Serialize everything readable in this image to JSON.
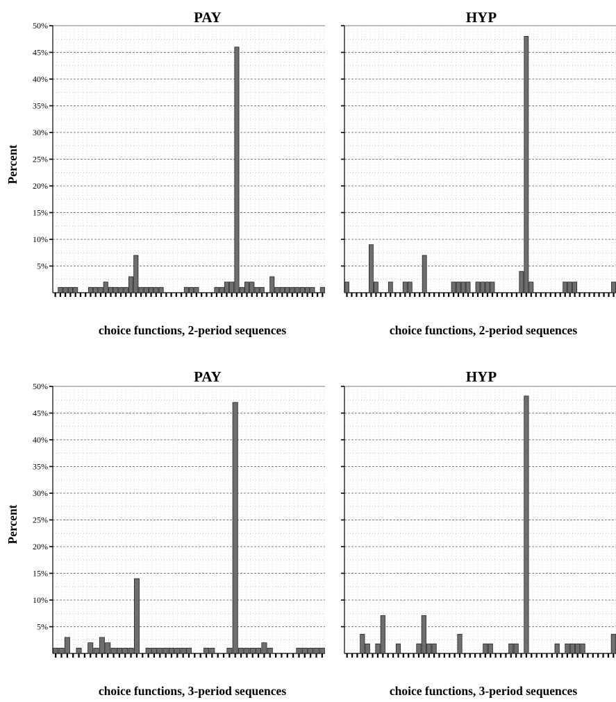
{
  "y_axis_label": "Percent",
  "panel_titles": [
    "PAY",
    "HYP",
    "PAY",
    "HYP"
  ],
  "x_axis_labels": [
    "choice functions, 2-period sequences",
    "choice functions, 2-period sequences",
    "choice functions, 3-period sequences",
    "choice functions, 3-period sequences"
  ],
  "colors": {
    "bar_fill": "#6e6e6e",
    "bar_stroke": "#222222",
    "major_grid": "#808080",
    "minor_grid": "#b0b0b0"
  },
  "chart_data": [
    {
      "type": "bar",
      "title": "PAY",
      "xlabel": "choice functions, 2-period sequences",
      "ylabel": "Percent",
      "ylim": [
        0,
        50
      ],
      "ytick_labels": [
        "5%",
        "10%",
        "15%",
        "20%",
        "25%",
        "30%",
        "35%",
        "40%",
        "45%",
        "50%"
      ],
      "values": [
        0,
        1,
        1,
        1,
        1,
        0,
        0,
        1,
        1,
        1,
        2,
        1,
        1,
        1,
        1,
        3,
        7,
        1,
        1,
        1,
        1,
        1,
        0,
        0,
        0,
        0,
        1,
        1,
        1,
        0,
        0,
        0,
        1,
        1,
        2,
        2,
        46,
        1,
        2,
        2,
        1,
        1,
        0,
        3,
        1,
        1,
        1,
        1,
        1,
        1,
        1,
        1,
        0,
        1
      ],
      "grid": true
    },
    {
      "type": "bar",
      "title": "HYP",
      "xlabel": "choice functions, 2-period sequences",
      "ylabel": "",
      "ylim": [
        0,
        50
      ],
      "values": [
        2,
        0,
        0,
        0,
        0,
        9,
        2,
        0,
        0,
        2,
        0,
        0,
        2,
        2,
        0,
        0,
        7,
        0,
        0,
        0,
        0,
        0,
        2,
        2,
        2,
        2,
        0,
        2,
        2,
        2,
        2,
        0,
        0,
        0,
        0,
        0,
        4,
        48,
        2,
        0,
        0,
        0,
        0,
        0,
        0,
        2,
        2,
        2,
        0,
        0,
        0,
        0,
        0,
        0,
        0,
        2
      ],
      "grid": true
    },
    {
      "type": "bar",
      "title": "PAY",
      "xlabel": "choice functions, 3-period sequences",
      "ylabel": "Percent",
      "ylim": [
        0,
        50
      ],
      "ytick_labels": [
        "5%",
        "10%",
        "15%",
        "20%",
        "25%",
        "30%",
        "35%",
        "40%",
        "45%",
        "50%"
      ],
      "values": [
        1,
        1,
        3,
        0,
        1,
        0,
        2,
        1,
        3,
        2,
        1,
        1,
        1,
        1,
        14,
        0,
        1,
        1,
        1,
        1,
        1,
        1,
        1,
        1,
        0,
        0,
        1,
        1,
        0,
        0,
        1,
        47,
        1,
        1,
        1,
        1,
        2,
        1,
        0,
        0,
        0,
        0,
        1,
        1,
        1,
        1,
        1
      ],
      "grid": true
    },
    {
      "type": "bar",
      "title": "HYP",
      "xlabel": "choice functions, 3-period sequences",
      "ylabel": "",
      "ylim": [
        0,
        50
      ],
      "values": [
        0,
        0,
        0,
        3.6,
        1.8,
        0,
        1.8,
        7.1,
        0,
        0,
        1.8,
        0,
        0,
        0,
        1.8,
        7.1,
        1.8,
        1.8,
        0,
        0,
        0,
        0,
        3.6,
        0,
        0,
        0,
        0,
        1.8,
        1.8,
        0,
        0,
        0,
        1.8,
        1.8,
        0,
        48.2,
        0,
        0,
        0,
        0,
        0,
        1.8,
        0,
        1.8,
        1.8,
        1.8,
        1.8,
        0,
        0,
        0,
        0,
        0,
        3.6
      ],
      "grid": true
    }
  ]
}
